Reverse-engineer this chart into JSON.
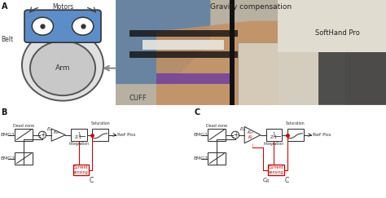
{
  "bg_color": "#ffffff",
  "panel_A_label": "A",
  "panel_B_label": "B",
  "panel_C_label": "C",
  "gravity_text": "Gravity compensation",
  "softhand_text": "SoftHand Pro",
  "cuff_text": "CUFF",
  "motors_text": "Motors",
  "belt_text": "Belt",
  "arm_text": "Arm",
  "emg1_text": "EMG1",
  "emg2_text": "EMG2",
  "ed_text": "$E_d$",
  "integration_text": "Integration",
  "saturation_text": "Saturation",
  "current_sensing_text": "Current\nsensing",
  "dead_zone_text": "Dead zone",
  "ref_pos_text": "Ref Pos",
  "C_text": "C",
  "CR_text": "$C_R$",
  "Km_text": "$K_m$",
  "Kf_text": "$K_f$",
  "red_color": "#cc0000",
  "gray_line": "#555555",
  "dark_color": "#222222",
  "blue_box": "#5b8ec9",
  "arm_gray": "#c0c0c0",
  "belt_gray": "#e0e0e0"
}
